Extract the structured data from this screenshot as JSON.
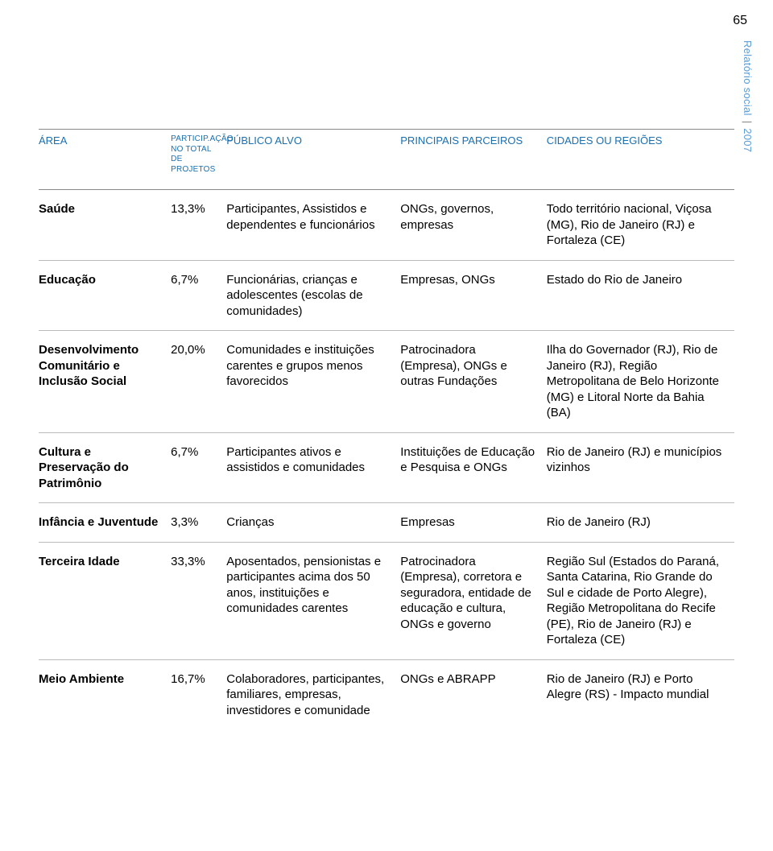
{
  "page_number": "65",
  "side_label": {
    "part1": "Relatório social",
    "sep": " | ",
    "part2": "2007"
  },
  "colors": {
    "header_text": "#1a6fb0",
    "side_text": "#5a9bd5",
    "rule": "#888888",
    "row_rule": "#bbbbbb",
    "body_text": "#000000",
    "background": "#ffffff"
  },
  "table": {
    "headers": {
      "area": "ÁREA",
      "particip": "PARTICIP.AÇÃO NO TOTAL DE PROJETOS",
      "publico": "PÚBLICO ALVO",
      "parceiros": "PRINCIPAIS PARCEIROS",
      "cidades": "CIDADES OU REGIÕES"
    },
    "rows": [
      {
        "area": "Saúde",
        "pct": "13,3%",
        "publico": "Participantes, Assistidos e dependentes e funcionários",
        "parceiros": "ONGs, governos, empresas",
        "cidades": "Todo território nacional, Viçosa (MG), Rio de Janeiro (RJ) e Fortaleza (CE)"
      },
      {
        "area": "Educação",
        "pct": "6,7%",
        "publico": "Funcionárias, crianças e adolescentes (escolas de comunidades)",
        "parceiros": "Empresas, ONGs",
        "cidades": "Estado do Rio de Janeiro"
      },
      {
        "area": "Desenvolvimento Comunitário e Inclusão Social",
        "pct": "20,0%",
        "publico": "Comunidades e instituições carentes e grupos menos favorecidos",
        "parceiros": "Patrocinadora (Empresa), ONGs e outras Fundações",
        "cidades": "Ilha do Governador (RJ), Rio de Janeiro (RJ), Região Metropolitana de Belo Horizonte (MG) e Litoral Norte da Bahia (BA)"
      },
      {
        "area": "Cultura e Preservação do Patrimônio",
        "pct": "6,7%",
        "publico": "Participantes ativos e assistidos e comunidades",
        "parceiros": "Instituições de Educação e Pesquisa e ONGs",
        "cidades": "Rio de Janeiro (RJ) e municípios vizinhos"
      },
      {
        "area": "Infância e Juventude",
        "pct": "3,3%",
        "publico": "Crianças",
        "parceiros": "Empresas",
        "cidades": "Rio de Janeiro (RJ)"
      },
      {
        "area": "Terceira Idade",
        "pct": "33,3%",
        "publico": "Aposentados, pensionistas e participantes acima dos 50 anos, instituições e comunidades carentes",
        "parceiros": "Patrocinadora (Empresa), corretora e seguradora, entidade de educação e cultura, ONGs e governo",
        "cidades": "Região Sul (Estados do Paraná, Santa Catarina, Rio Grande do Sul e cidade de Porto Alegre), Região Metropolitana do Recife (PE), Rio de Janeiro (RJ) e Fortaleza (CE)"
      },
      {
        "area": "Meio Ambiente",
        "pct": "16,7%",
        "publico": "Colaboradores, participantes, familiares, empresas, investidores e comunidade",
        "parceiros": "ONGs e ABRAPP",
        "cidades": "Rio de Janeiro (RJ) e Porto Alegre (RS) - Impacto mundial"
      }
    ]
  }
}
